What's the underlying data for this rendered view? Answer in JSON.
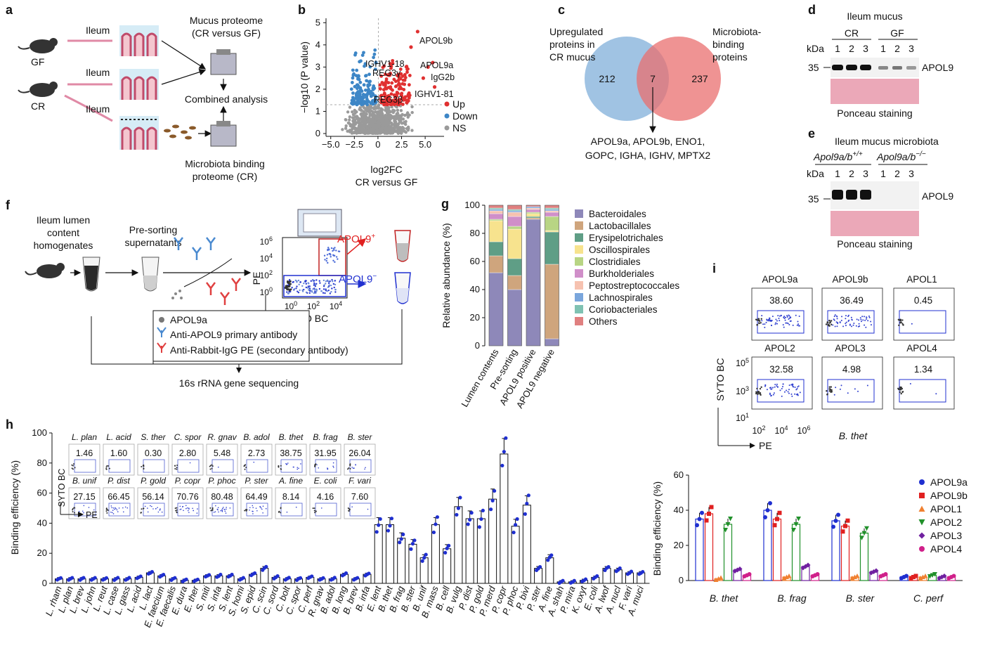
{
  "panels": {
    "a": "a",
    "b": "b",
    "c": "c",
    "d": "d",
    "e": "e",
    "f": "f",
    "g": "g",
    "h": "h",
    "i": "i"
  },
  "a": {
    "gf": "GF",
    "cr": "CR",
    "ileum": "Ileum",
    "mucus_proteome_1": "Mucus proteome",
    "mucus_proteome_2": "(CR versus GF)",
    "combined": "Combined analysis",
    "mbp_1": "Microbiota binding",
    "mbp_2": "proteome (CR)"
  },
  "b": {
    "ylabel": "−log10 (P value)",
    "xlabel_1": "log2FC",
    "xlabel_2": "CR versus GF",
    "xticks": [
      "−5.0",
      "−2.5",
      "0",
      "2.5",
      "5.0"
    ],
    "yticks": [
      "0",
      "1",
      "2",
      "3",
      "4",
      "5"
    ],
    "legend": [
      "Up",
      "Down",
      "NS"
    ],
    "labels": [
      "APOL9b",
      "APOL9a",
      "IgG2b",
      "IGHV1-81",
      "IGHV1-18",
      "REG3γ",
      "REG3β"
    ],
    "colors": {
      "up": "#e03030",
      "down": "#3d86c6",
      "ns": "#9a9a9a"
    }
  },
  "c": {
    "left_title_1": "Upregulated",
    "left_title_2": "proteins in",
    "left_title_3": "CR mucus",
    "right_title_1": "Microbiota-",
    "right_title_2": "binding",
    "right_title_3": "proteins",
    "left_n": "212",
    "overlap_n": "7",
    "right_n": "237",
    "list_1": "APOL9a, APOL9b, ENO1,",
    "list_2": "GOPC, IGHA, IGHV, MPTX2"
  },
  "d": {
    "title": "Ileum mucus",
    "cr": "CR",
    "gf": "GF",
    "kda": "kDa",
    "lanes": [
      "1",
      "2",
      "3",
      "1",
      "2",
      "3"
    ],
    "marker": "35",
    "band": "APOL9",
    "ponceau": "Ponceau staining"
  },
  "e": {
    "title": "Ileum mucus microbiota",
    "g1": "Apol9a/b",
    "g1_sup": "+/+",
    "g2": "Apol9a/b",
    "g2_sup": "−/−",
    "kda": "kDa",
    "lanes": [
      "1",
      "2",
      "3",
      "1",
      "2",
      "3"
    ],
    "marker": "35",
    "band": "APOL9",
    "ponceau": "Ponceau staining"
  },
  "f": {
    "l1": "Ileum lumen",
    "l2": "content",
    "l3": "homogenates",
    "s1": "Pre-sorting",
    "s2": "supernatants",
    "pos": "APOL9",
    "pos_sup": "+",
    "neg": "APOL9",
    "neg_sup": "−",
    "ylab": "PE",
    "xlab": "SYTO BC",
    "yticks": [
      "10^6",
      "10^4",
      "10^2",
      "10^0"
    ],
    "xticks": [
      "10^0",
      "10^2",
      "10^4"
    ],
    "leg1": "APOL9a",
    "leg2": "Anti-APOL9 primary antibody",
    "leg3": "Anti-Rabbit-IgG PE (secondary antibody)",
    "seq": "16s rRNA gene sequencing"
  },
  "g": {
    "ylabel": "Relative abundance (%)",
    "yticks": [
      "0",
      "20",
      "40",
      "60",
      "80",
      "100"
    ],
    "categories": [
      "Lumen contents",
      "Pre-sorting",
      "APOL9 positive",
      "APOL9 negative"
    ],
    "legend": [
      "Bacteroidales",
      "Lactobacillales",
      "Erysipelotrichales",
      "Oscillospirales",
      "Clostridiales",
      "Burkholderiales",
      "Peptostreptococcales",
      "Lachnospirales",
      "Coriobacteriales",
      "Others"
    ],
    "colors": [
      "#8e88b9",
      "#cfa57d",
      "#5f9e86",
      "#f7e38e",
      "#b8d584",
      "#d08fc9",
      "#f6c2b0",
      "#7aa6dc",
      "#7fc2b2",
      "#e08080"
    ]
  },
  "i": {
    "panels": [
      {
        "name": "APOL9a",
        "value": "38.60"
      },
      {
        "name": "APOL9b",
        "value": "36.49"
      },
      {
        "name": "APOL1",
        "value": "0.45"
      },
      {
        "name": "APOL2",
        "value": "32.58"
      },
      {
        "name": "APOL3",
        "value": "4.98"
      },
      {
        "name": "APOL4",
        "value": "1.34"
      }
    ],
    "ylab": "SYTO BC",
    "xlab": "PE",
    "yticks": [
      "10^5",
      "10^3",
      "10^1"
    ],
    "xticks": [
      "10^2",
      "10^4",
      "10^6"
    ],
    "species": "B. thet"
  },
  "h": {
    "ylabel": "Binding efficiency (%)",
    "yticks": [
      "0",
      "20",
      "40",
      "60",
      "80",
      "100"
    ],
    "inset_rows": [
      [
        [
          "L. plan",
          "1.46"
        ],
        [
          "L. acid",
          "1.60"
        ],
        [
          "S. ther",
          "0.30"
        ],
        [
          "C. spor",
          "2.80"
        ],
        [
          "R. gnav",
          "5.48"
        ],
        [
          "B. adol",
          "2.73"
        ],
        [
          "B. thet",
          "38.75"
        ],
        [
          "B. frag",
          "31.95"
        ],
        [
          "B. ster",
          "26.04"
        ]
      ],
      [
        [
          "B. unif",
          "27.15"
        ],
        [
          "P. dist",
          "66.45"
        ],
        [
          "P. gold",
          "56.14"
        ],
        [
          "P. copr",
          "70.76"
        ],
        [
          "P. phoc",
          "80.48"
        ],
        [
          "P. ster",
          "64.49"
        ],
        [
          "A. fine",
          "8.14"
        ],
        [
          "E. coli",
          "4.16"
        ],
        [
          "F. vari",
          "7.60"
        ]
      ]
    ],
    "inset_ylab": "SYTO BC",
    "inset_xlab": "PE"
  },
  "chart_data": [
    {
      "type": "bar",
      "title": "",
      "ylabel": "Binding efficiency (%)",
      "ylim": [
        0,
        100
      ],
      "categories": [
        "L. rham",
        "L. plan",
        "L. brev",
        "L. john",
        "L. reut",
        "L. case",
        "L. gass",
        "L. acid",
        "L. lact",
        "E. faecium",
        "E. faecalis",
        "E. dura",
        "E. ther",
        "S. miti",
        "S. infa",
        "S. lent",
        "S. homi",
        "S. epid",
        "C. scin",
        "C. sord",
        "C. bolt",
        "C. spor",
        "C. perf",
        "R. gnav",
        "B. adol",
        "B. long",
        "B. brev",
        "B. infa",
        "E. lent",
        "B. thet",
        "B. frag",
        "B. ster",
        "B. unif",
        "B. mass",
        "B. cell",
        "B. vulg",
        "P. dist",
        "P. gold",
        "P. merd",
        "P. copr",
        "P. phoc",
        "P. bivi",
        "P. ster",
        "A. fine",
        "A. shah",
        "P. mira",
        "K. oxyt",
        "E. coli",
        "A. lwof",
        "A. nucl",
        "F. vari",
        "A. muci"
      ],
      "values": [
        3,
        3,
        3,
        3,
        3,
        3,
        3,
        4,
        7,
        5,
        3,
        2,
        2,
        5,
        5,
        5,
        3,
        6,
        10,
        4,
        3,
        3,
        4,
        3,
        3,
        6,
        3,
        6,
        39,
        39,
        30,
        26,
        17,
        39,
        23,
        51,
        43,
        43,
        56,
        86,
        38,
        52,
        10,
        17,
        1,
        1,
        2,
        4,
        10,
        9,
        7,
        7
      ]
    },
    {
      "type": "bar",
      "ylabel": "Binding efficiency (%)",
      "ylim": [
        0,
        60
      ],
      "categories": [
        "B. thet",
        "B. frag",
        "B. ster",
        "C. perf"
      ],
      "series": [
        {
          "name": "APOL9a",
          "color": "#1f2fd0",
          "values": [
            35,
            40,
            34,
            2
          ]
        },
        {
          "name": "APOL9b",
          "color": "#e02020",
          "values": [
            38,
            35,
            31,
            2
          ]
        },
        {
          "name": "APOL1",
          "color": "#f08030",
          "values": [
            1,
            2,
            2,
            2
          ]
        },
        {
          "name": "APOL2",
          "color": "#20902a",
          "values": [
            32,
            32,
            27,
            3
          ]
        },
        {
          "name": "APOL3",
          "color": "#7020a0",
          "values": [
            6,
            8,
            5,
            2
          ]
        },
        {
          "name": "APOL4",
          "color": "#d0208a",
          "values": [
            3,
            3,
            3,
            2
          ]
        }
      ]
    },
    {
      "type": "bar",
      "ylabel": "Relative abundance (%)",
      "ylim": [
        0,
        100
      ],
      "categories": [
        "Lumen contents",
        "Pre-sorting",
        "APOL9 positive",
        "APOL9 negative"
      ],
      "series": [
        {
          "name": "Bacteroidales",
          "values": [
            52,
            40,
            90,
            5
          ]
        },
        {
          "name": "Lactobacillales",
          "values": [
            12,
            10,
            1,
            53
          ]
        },
        {
          "name": "Erysipelotrichales",
          "values": [
            10,
            12,
            1,
            23
          ]
        },
        {
          "name": "Oscillospirales",
          "values": [
            15,
            21,
            2,
            1
          ]
        },
        {
          "name": "Clostridiales",
          "values": [
            1,
            2,
            1,
            10
          ]
        },
        {
          "name": "Burkholderiales",
          "values": [
            4,
            7,
            2,
            3
          ]
        },
        {
          "name": "Peptostreptococcales",
          "values": [
            2,
            3,
            1,
            1
          ]
        },
        {
          "name": "Lachnospirales",
          "values": [
            1,
            1,
            1,
            1
          ]
        },
        {
          "name": "Coriobacteriales",
          "values": [
            1,
            1,
            0,
            1
          ]
        },
        {
          "name": "Others",
          "values": [
            2,
            3,
            1,
            2
          ]
        }
      ]
    }
  ]
}
